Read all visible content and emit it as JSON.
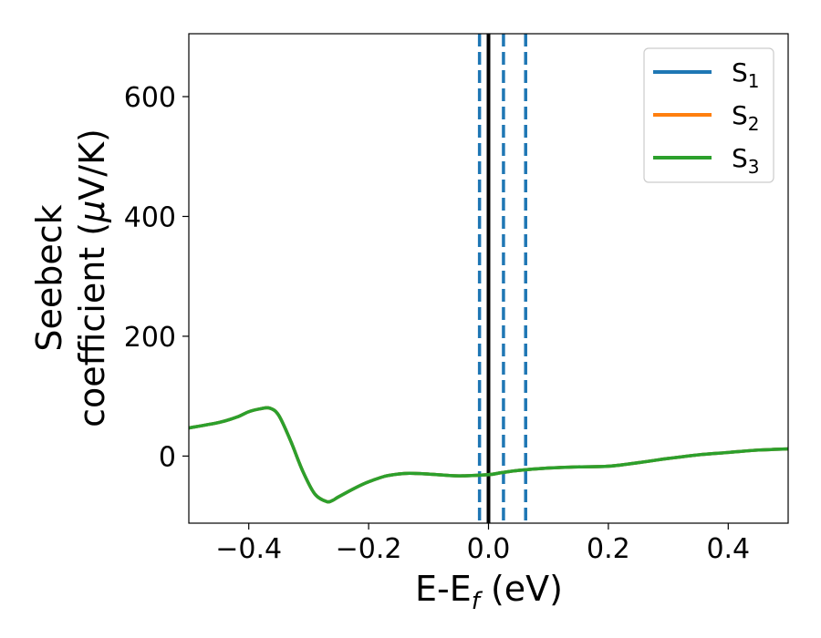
{
  "chart_data": {
    "type": "line",
    "xlabel_parts": [
      "E-E",
      "f",
      " (eV)"
    ],
    "ylabel_line1": "Seebeck",
    "ylabel_line2_parts": [
      "coefficient  (",
      "μ",
      "V/K)"
    ],
    "xlim": [
      -0.5,
      0.5
    ],
    "ylim": [
      -112,
      705
    ],
    "xticks": [
      -0.4,
      -0.2,
      0.0,
      0.2,
      0.4
    ],
    "xtick_labels": [
      "−0.4",
      "−0.2",
      "0.0",
      "0.2",
      "0.4"
    ],
    "yticks": [
      0,
      200,
      400,
      600
    ],
    "ytick_labels": [
      "0",
      "200",
      "400",
      "600"
    ],
    "grid": false,
    "legend_position": "top-right",
    "x": [
      -0.5,
      -0.45,
      -0.42,
      -0.4,
      -0.38,
      -0.365,
      -0.35,
      -0.33,
      -0.31,
      -0.29,
      -0.27,
      -0.26,
      -0.25,
      -0.22,
      -0.2,
      -0.17,
      -0.14,
      -0.12,
      -0.1,
      -0.05,
      0.0,
      0.02,
      0.05,
      0.1,
      0.15,
      0.2,
      0.25,
      0.3,
      0.35,
      0.4,
      0.45,
      0.5
    ],
    "series": [
      {
        "name_main": "S",
        "name_sub": "1",
        "color": "#1f77b4",
        "values": [
          47,
          56,
          65,
          74,
          79,
          80,
          68,
          25,
          -25,
          -63,
          -76,
          -74,
          -68,
          -52,
          -43,
          -33,
          -29,
          -29,
          -30,
          -33,
          -31,
          -28,
          -24,
          -20,
          -18,
          -17,
          -11,
          -4,
          2,
          6,
          10,
          12
        ]
      },
      {
        "name_main": "S",
        "name_sub": "2",
        "color": "#ff7f0e",
        "values": [
          47,
          56,
          65,
          74,
          79,
          80,
          68,
          25,
          -25,
          -63,
          -76,
          -74,
          -68,
          -52,
          -43,
          -33,
          -29,
          -29,
          -30,
          -33,
          -31,
          -28,
          -24,
          -20,
          -18,
          -17,
          -11,
          -4,
          2,
          6,
          10,
          12
        ]
      },
      {
        "name_main": "S",
        "name_sub": "3",
        "color": "#2ca02c",
        "values": [
          47,
          56,
          65,
          74,
          79,
          80,
          68,
          25,
          -25,
          -63,
          -76,
          -74,
          -68,
          -52,
          -43,
          -33,
          -29,
          -29,
          -30,
          -33,
          -31,
          -28,
          -24,
          -20,
          -18,
          -17,
          -11,
          -4,
          2,
          6,
          10,
          12
        ]
      }
    ],
    "vertical_lines": [
      {
        "x": 0.0,
        "style": "solid",
        "color": "#000000"
      },
      {
        "x": -0.015,
        "style": "dashed",
        "color": "#1f77b4"
      },
      {
        "x": 0.025,
        "style": "dashed",
        "color": "#1f77b4"
      },
      {
        "x": 0.062,
        "style": "dashed",
        "color": "#1f77b4"
      }
    ]
  }
}
